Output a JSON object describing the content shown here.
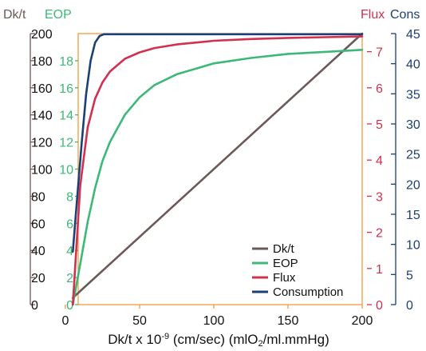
{
  "chart_data": {
    "type": "line",
    "xlabel": "Dk/t x 10",
    "xlabel_sup": "-9",
    "xlabel_rest": " (cm/sec) (mlO",
    "xlabel_sub": "2",
    "xlabel_end": "/ml.mmHg)",
    "xlim": [
      0,
      200
    ],
    "x_ticks": [
      "0",
      "50",
      "100",
      "150",
      "200"
    ],
    "grid": false,
    "legend_position": "bottom-right",
    "axes": [
      {
        "id": "dkt",
        "title": "Dk/t",
        "color": "#6b5a58",
        "range": [
          0,
          200
        ],
        "ticks": [
          "0",
          "20",
          "40",
          "60",
          "80",
          "100",
          "120",
          "140",
          "160",
          "180",
          "200"
        ]
      },
      {
        "id": "eop",
        "title": "EOP",
        "color": "#3cb878",
        "range": [
          0,
          20
        ],
        "ticks": [
          "0",
          "2",
          "4",
          "6",
          "8",
          "10",
          "12",
          "14",
          "16",
          "18"
        ]
      },
      {
        "id": "flux",
        "title": "Flux",
        "color": "#d2304f",
        "range": [
          0,
          7.5
        ],
        "ticks": [
          "0",
          "1",
          "2",
          "3",
          "4",
          "5",
          "6",
          "7"
        ]
      },
      {
        "id": "cons",
        "title": "Cons",
        "color": "#1d3f73",
        "range": [
          0,
          45
        ],
        "ticks": [
          "0",
          "5",
          "10",
          "15",
          "20",
          "25",
          "30",
          "35",
          "40",
          "45"
        ]
      }
    ],
    "series": [
      {
        "name": "Dk/t",
        "axis": "dkt",
        "color": "#6b5a58",
        "x": [
          5,
          200
        ],
        "y": [
          5,
          200
        ]
      },
      {
        "name": "EOP",
        "axis": "eop",
        "color": "#3cb878",
        "x": [
          5,
          10,
          15,
          20,
          25,
          30,
          40,
          50,
          60,
          75,
          100,
          125,
          150,
          175,
          200
        ],
        "y": [
          0,
          3,
          6.1,
          8.6,
          10.6,
          12,
          14,
          15.3,
          16.2,
          17,
          17.8,
          18.2,
          18.5,
          18.65,
          18.8
        ]
      },
      {
        "name": "Flux",
        "axis": "flux",
        "color": "#d2304f",
        "x": [
          5,
          10,
          15,
          20,
          25,
          30,
          40,
          50,
          60,
          75,
          100,
          125,
          150,
          175,
          200
        ],
        "y": [
          0,
          3.3,
          4.9,
          5.7,
          6.15,
          6.45,
          6.8,
          6.98,
          7.1,
          7.2,
          7.3,
          7.35,
          7.38,
          7.4,
          7.42
        ]
      },
      {
        "name": "Consumption",
        "axis": "cons",
        "color": "#1d3f73",
        "x": [
          5,
          8,
          11,
          14,
          17,
          20,
          23,
          26,
          30,
          50,
          100,
          150,
          200
        ],
        "y": [
          8.8,
          18,
          27,
          35,
          40.5,
          43.5,
          44.6,
          44.9,
          44.9,
          44.9,
          44.9,
          44.9,
          44.9
        ]
      }
    ]
  }
}
